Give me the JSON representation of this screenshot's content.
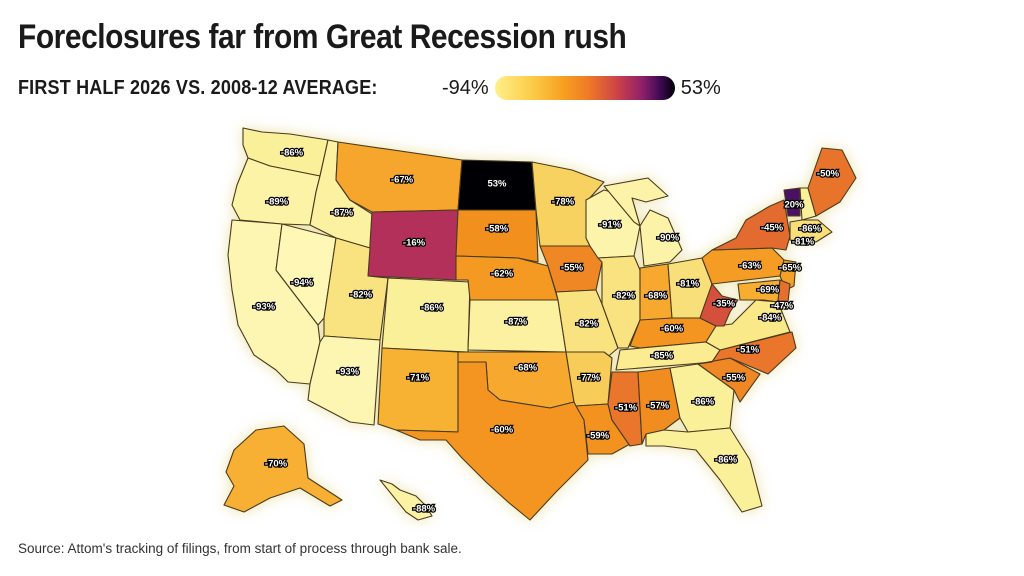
{
  "title": "Foreclosures far from Great Recession rush",
  "subtitle": "FIRST HALF 2026 VS. 2008-12 AVERAGE:",
  "legend": {
    "min_label": "-94%",
    "max_label": "53%",
    "min_value": -94,
    "max_value": 53
  },
  "source": "Source: Attom's tracking of filings, from start of process through bank sale.",
  "colors": {
    "low": "#fff18e",
    "high": "#000004",
    "accent": "#f39a1e"
  },
  "states": [
    {
      "abbr": "WA",
      "value": -86,
      "label": "-86%",
      "color": "#fbf09a"
    },
    {
      "abbr": "OR",
      "value": -89,
      "label": "-89%",
      "color": "#fcf3a6"
    },
    {
      "abbr": "CA",
      "value": -93,
      "label": "-93%",
      "color": "#fdf5b2"
    },
    {
      "abbr": "NV",
      "value": -94,
      "label": "-94%",
      "color": "#fef7b6"
    },
    {
      "abbr": "ID",
      "value": -87,
      "label": "-87%",
      "color": "#fbf1a0"
    },
    {
      "abbr": "MT",
      "value": -67,
      "label": "-67%",
      "color": "#f6a62c"
    },
    {
      "abbr": "WY",
      "value": -16,
      "label": "-16%",
      "color": "#b2305a"
    },
    {
      "abbr": "UT",
      "value": -82,
      "label": "-82%",
      "color": "#f9e381"
    },
    {
      "abbr": "AZ",
      "value": -93,
      "label": "-93%",
      "color": "#fdf5b2"
    },
    {
      "abbr": "CO",
      "value": -86,
      "label": "-86%",
      "color": "#fbf09a"
    },
    {
      "abbr": "NM",
      "value": -71,
      "label": "-71%",
      "color": "#f7b234"
    },
    {
      "abbr": "ND",
      "value": 53,
      "label": "53%",
      "color": "#000004"
    },
    {
      "abbr": "SD",
      "value": -58,
      "label": "-58%",
      "color": "#f2901e"
    },
    {
      "abbr": "NE",
      "value": -62,
      "label": "-62%",
      "color": "#f49a22"
    },
    {
      "abbr": "KS",
      "value": -87,
      "label": "-87%",
      "color": "#fbf1a0"
    },
    {
      "abbr": "OK",
      "value": -68,
      "label": "-68%",
      "color": "#f6a92e"
    },
    {
      "abbr": "TX",
      "value": -60,
      "label": "-60%",
      "color": "#f39520"
    },
    {
      "abbr": "MN",
      "value": -78,
      "label": "-78%",
      "color": "#f8d260"
    },
    {
      "abbr": "IA",
      "value": -55,
      "label": "-55%",
      "color": "#ee8724"
    },
    {
      "abbr": "MO",
      "value": -82,
      "label": "-82%",
      "color": "#f9e381"
    },
    {
      "abbr": "AR",
      "value": -77,
      "label": "-77%",
      "color": "#f8cc58"
    },
    {
      "abbr": "LA",
      "value": -59,
      "label": "-59%",
      "color": "#f3921f"
    },
    {
      "abbr": "WI",
      "value": -91,
      "label": "-91%",
      "color": "#fdf4ac"
    },
    {
      "abbr": "IL",
      "value": -82,
      "label": "-82%",
      "color": "#f9e381"
    },
    {
      "abbr": "MI",
      "value": -90,
      "label": "-90%",
      "color": "#fcf3a8"
    },
    {
      "abbr": "IN",
      "value": -68,
      "label": "-68%",
      "color": "#f6a92e"
    },
    {
      "abbr": "OH",
      "value": -81,
      "label": "-81%",
      "color": "#f9df79"
    },
    {
      "abbr": "KY",
      "value": -60,
      "label": "-60%",
      "color": "#f39520"
    },
    {
      "abbr": "TN",
      "value": -85,
      "label": "-85%",
      "color": "#fbec92"
    },
    {
      "abbr": "MS",
      "value": -51,
      "label": "-51%",
      "color": "#e9762a"
    },
    {
      "abbr": "AL",
      "value": -57,
      "label": "-57%",
      "color": "#f08c20"
    },
    {
      "abbr": "GA",
      "value": -86,
      "label": "-86%",
      "color": "#fbf09a"
    },
    {
      "abbr": "FL",
      "value": -86,
      "label": "-86%",
      "color": "#fbf09a"
    },
    {
      "abbr": "SC",
      "value": -55,
      "label": "-55%",
      "color": "#ee8724"
    },
    {
      "abbr": "NC",
      "value": -51,
      "label": "-51%",
      "color": "#e9762a"
    },
    {
      "abbr": "VA",
      "value": -84,
      "label": "-84%",
      "color": "#fae988"
    },
    {
      "abbr": "WV",
      "value": -35,
      "label": "-35%",
      "color": "#d5503c"
    },
    {
      "abbr": "PA",
      "value": -63,
      "label": "-63%",
      "color": "#f49c24"
    },
    {
      "abbr": "NY",
      "value": -45,
      "label": "-45%",
      "color": "#e36b30"
    },
    {
      "abbr": "VT",
      "value": 20,
      "label": "20%",
      "color": "#4a1062"
    },
    {
      "abbr": "NH",
      "value": -86,
      "label": "-86%",
      "color": "#fbf09a"
    },
    {
      "abbr": "ME",
      "value": -50,
      "label": "-50%",
      "color": "#e8742b"
    },
    {
      "abbr": "MA",
      "value": -81,
      "label": "-81%",
      "color": "#f9df79"
    },
    {
      "abbr": "NJ",
      "value": -65,
      "label": "-65%",
      "color": "#f5a028"
    },
    {
      "abbr": "MD",
      "value": -69,
      "label": "-69%",
      "color": "#f6ad30"
    },
    {
      "abbr": "DE",
      "value": -47,
      "label": "-47%",
      "color": "#e56f2e"
    },
    {
      "abbr": "AK",
      "value": -70,
      "label": "-70%",
      "color": "#f7b034"
    },
    {
      "abbr": "HI",
      "value": -88,
      "label": "-88%",
      "color": "#fcf2a4"
    }
  ]
}
